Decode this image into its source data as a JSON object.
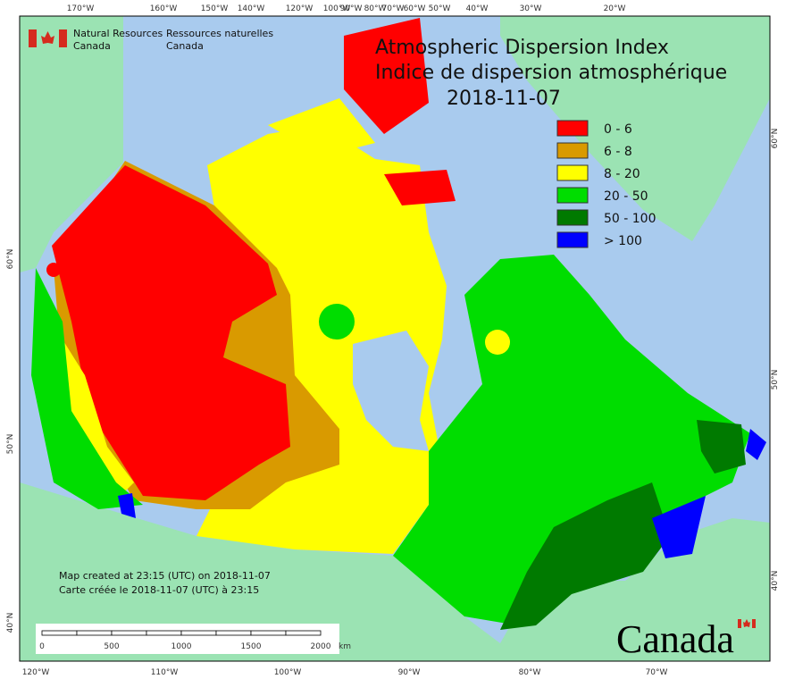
{
  "header": {
    "agency_en": [
      "Natural Resources",
      "Canada"
    ],
    "agency_fr": [
      "Ressources naturelles",
      "Canada"
    ]
  },
  "title": {
    "line1": "Atmospheric Dispersion Index",
    "line2": "Indice de dispersion atmosphérique",
    "date": "2018-11-07"
  },
  "legend": [
    {
      "label": "0 - 6",
      "color": "#ff0000"
    },
    {
      "label": "6 - 8",
      "color": "#d99a00"
    },
    {
      "label": "8 - 20",
      "color": "#ffff00"
    },
    {
      "label": "20 - 50",
      "color": "#00dd00"
    },
    {
      "label": "50 - 100",
      "color": "#007a00"
    },
    {
      "label": "> 100",
      "color": "#0000ff"
    }
  ],
  "top_lon_labels": [
    "170°W",
    "160°W",
    "150°W",
    "140°W",
    "120°W",
    "100°W",
    "90°W",
    "80°W",
    "70°W",
    "60°W",
    "50°W",
    "40°W",
    "30°W",
    "20°W"
  ],
  "bottom_lon_labels": [
    "120°W",
    "110°W",
    "100°W",
    "90°W",
    "80°W",
    "70°W"
  ],
  "left_lat_labels": [
    "60°N",
    "50°N",
    "40°N"
  ],
  "right_lat_labels": [
    "60°N",
    "50°N",
    "40°N"
  ],
  "credits": [
    "Map created at 23:15 (UTC) on 2018-11-07",
    "Carte créée le 2018-11-07 (UTC) à 23:15"
  ],
  "scale_bar": {
    "labels": [
      "0",
      "500",
      "1000",
      "1500",
      "2000"
    ],
    "unit": "km"
  },
  "wordmark": "Canada"
}
